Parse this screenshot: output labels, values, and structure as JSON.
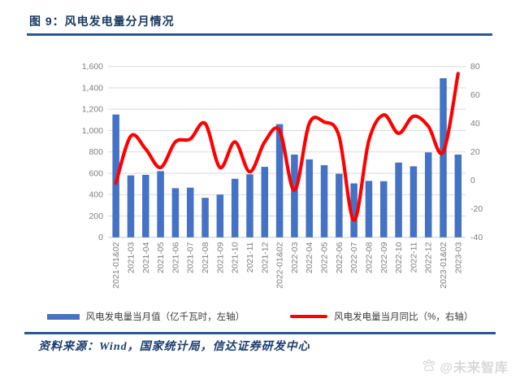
{
  "page": {
    "title": "图 9：风电发电量分月情况",
    "source": "资料来源：Wind，国家统计局，信达证券研发中心",
    "watermark": "@未来智库"
  },
  "legend": {
    "bars_label": "风电发电量当月值（亿千瓦时，左轴）",
    "line_label": "风电发电量当月同比（%，右轴）"
  },
  "chart_data": {
    "type": "bar",
    "subtype": "bar+line dual-axis combo",
    "title": "风电发电量分月情况",
    "grid": true,
    "legend_position": "bottom",
    "categories": [
      "2021-01&02",
      "2021-03",
      "2021-04",
      "2021-05",
      "2021-06",
      "2021-07",
      "2021-08",
      "2021-09",
      "2021-10",
      "2021-11",
      "2021-12",
      "2022-01&02",
      "2022-03",
      "2022-04",
      "2022-05",
      "2022-06",
      "2022-07",
      "2022-08",
      "2022-09",
      "2022-10",
      "2022-11",
      "2022-12",
      "2023-01&02",
      "2023-03"
    ],
    "series": [
      {
        "name": "风电发电量当月值",
        "type": "bar",
        "axis": "left",
        "unit": "亿千瓦时",
        "color": "#4472C4",
        "values": [
          1150,
          580,
          585,
          620,
          460,
          465,
          370,
          400,
          548,
          590,
          660,
          1060,
          775,
          730,
          675,
          595,
          505,
          528,
          525,
          700,
          665,
          795,
          1490,
          775
        ]
      },
      {
        "name": "风电发电量当月同比",
        "type": "line",
        "axis": "right",
        "unit": "%",
        "color": "#FF0000",
        "values": [
          -2,
          31,
          22,
          9,
          27,
          29,
          40,
          9,
          27,
          6,
          27,
          35,
          -7,
          40,
          41,
          31,
          -28,
          28,
          46,
          33,
          45,
          38,
          20,
          75
        ]
      }
    ],
    "left_axis": {
      "min": 0,
      "max": 1600,
      "step": 200,
      "tick_labels": [
        "0",
        "200",
        "400",
        "600",
        "800",
        "1,000",
        "1,200",
        "1,400",
        "1,600"
      ]
    },
    "right_axis": {
      "min": -40,
      "max": 80,
      "step": 20,
      "tick_labels": [
        "-40",
        "-20",
        "0",
        "20",
        "40",
        "60",
        "80"
      ]
    }
  },
  "colors": {
    "bar": "#4472C4",
    "line": "#FF0000",
    "gridline": "#D9D9D9",
    "axis_text": "#7f7f7f",
    "title_text": "#17375E",
    "rule": "#2B5797"
  }
}
